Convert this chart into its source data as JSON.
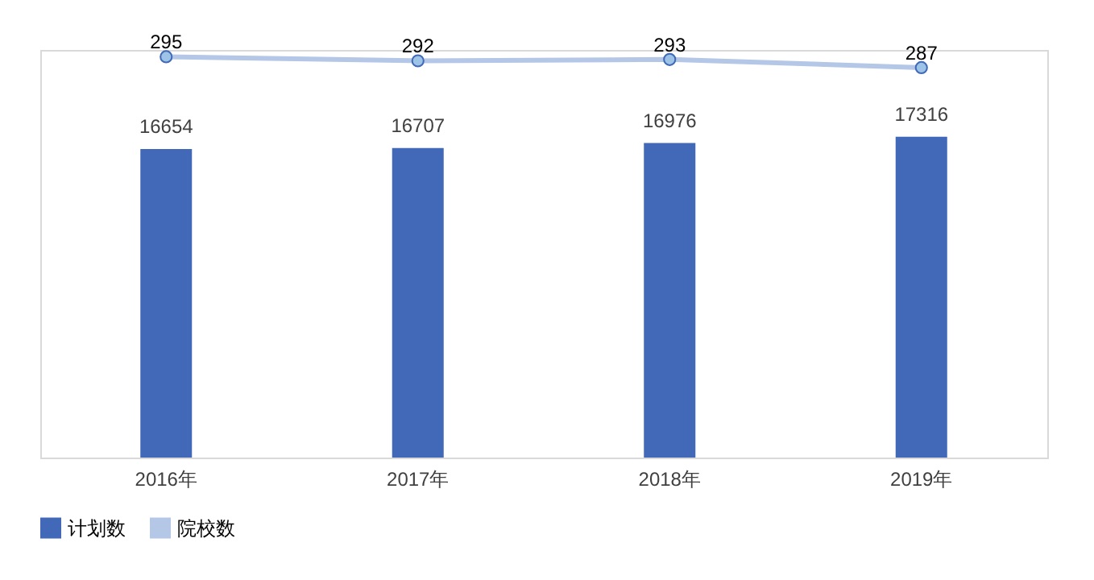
{
  "chart_data": {
    "type": "bar",
    "categories": [
      "2016年",
      "2017年",
      "2018年",
      "2019年"
    ],
    "series": [
      {
        "name": "计划数",
        "color": "#4169b8",
        "values": [
          16654,
          16707,
          16976,
          17316
        ]
      },
      {
        "name": "院校数",
        "type": "line",
        "axis": "y2",
        "color": "#b4c7e7",
        "values": [
          295,
          292,
          293,
          287
        ]
      }
    ],
    "ylim": [
      0,
      22000
    ],
    "y2lim": [
      0,
      300
    ],
    "tick_labels": "x",
    "legend": "bottom",
    "marker": "circle",
    "line_style": "solid",
    "data_labels": true
  }
}
